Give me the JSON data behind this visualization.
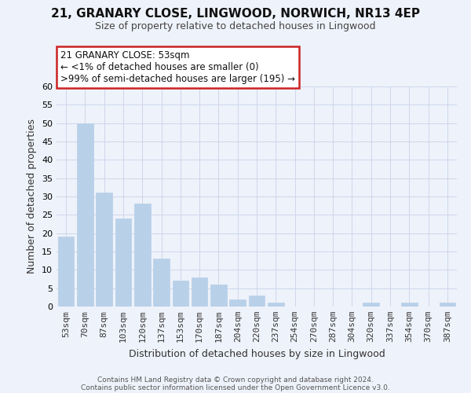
{
  "title1": "21, GRANARY CLOSE, LINGWOOD, NORWICH, NR13 4EP",
  "title2": "Size of property relative to detached houses in Lingwood",
  "xlabel": "Distribution of detached houses by size in Lingwood",
  "ylabel": "Number of detached properties",
  "footer1": "Contains HM Land Registry data © Crown copyright and database right 2024.",
  "footer2": "Contains public sector information licensed under the Open Government Licence v3.0.",
  "bar_labels": [
    "53sqm",
    "70sqm",
    "87sqm",
    "103sqm",
    "120sqm",
    "137sqm",
    "153sqm",
    "170sqm",
    "187sqm",
    "204sqm",
    "220sqm",
    "237sqm",
    "254sqm",
    "270sqm",
    "287sqm",
    "304sqm",
    "320sqm",
    "337sqm",
    "354sqm",
    "370sqm",
    "387sqm"
  ],
  "bar_values": [
    19,
    50,
    31,
    24,
    28,
    13,
    7,
    8,
    6,
    2,
    3,
    1,
    0,
    0,
    0,
    0,
    1,
    0,
    1,
    0,
    1
  ],
  "bar_color": "#b8d0e8",
  "ylim": [
    0,
    60
  ],
  "yticks": [
    0,
    5,
    10,
    15,
    20,
    25,
    30,
    35,
    40,
    45,
    50,
    55,
    60
  ],
  "annotation_title": "21 GRANARY CLOSE: 53sqm",
  "annotation_line1": "← <1% of detached houses are smaller (0)",
  "annotation_line2": ">99% of semi-detached houses are larger (195) →",
  "annotation_box_color": "#ffffff",
  "annotation_box_edge": "#cc2222",
  "grid_color": "#ccd8ec",
  "background_color": "#eef2fa",
  "title1_fontsize": 11,
  "title2_fontsize": 9,
  "ylabel_fontsize": 9,
  "xlabel_fontsize": 9,
  "tick_fontsize": 8,
  "footer_fontsize": 6.5,
  "annot_fontsize": 8.5
}
